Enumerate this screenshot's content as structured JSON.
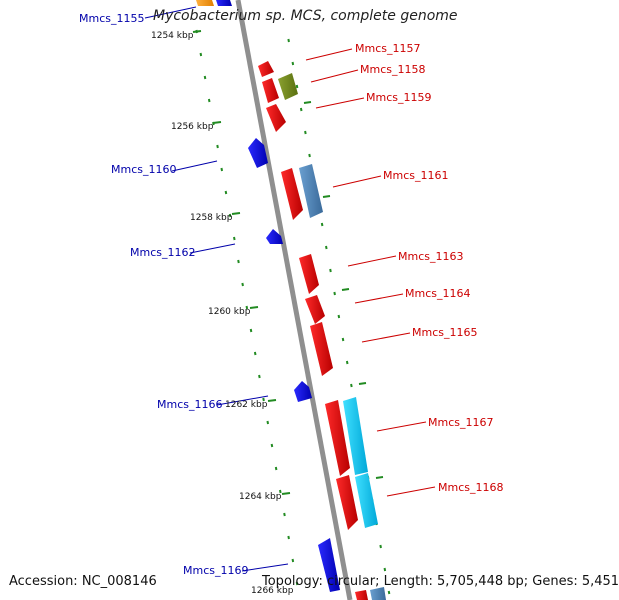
{
  "title": "Mycobacterium sp. MCS, complete genome",
  "footer": {
    "accession": "Accession: NC_008146",
    "stats": "Topology: circular; Length: 5,705,448 bp; Genes: 5,451"
  },
  "colors": {
    "backbone": "#909090",
    "tick": "#228b22",
    "forward_label": "#cc0000",
    "reverse_label": "#0000aa"
  },
  "scale_labels": [
    "1254 kbp",
    "1256 kbp",
    "1258 kbp",
    "1260 kbp",
    "1262 kbp",
    "1264 kbp",
    "1266 kbp"
  ],
  "genes": [
    {
      "name": "Mmcs_1155",
      "strand": "reverse"
    },
    {
      "name": "Mmcs_1157",
      "strand": "forward"
    },
    {
      "name": "Mmcs_1158",
      "strand": "forward"
    },
    {
      "name": "Mmcs_1159",
      "strand": "forward"
    },
    {
      "name": "Mmcs_1160",
      "strand": "reverse"
    },
    {
      "name": "Mmcs_1161",
      "strand": "forward"
    },
    {
      "name": "Mmcs_1162",
      "strand": "reverse"
    },
    {
      "name": "Mmcs_1163",
      "strand": "forward"
    },
    {
      "name": "Mmcs_1164",
      "strand": "forward"
    },
    {
      "name": "Mmcs_1165",
      "strand": "forward"
    },
    {
      "name": "Mmcs_1166",
      "strand": "reverse"
    },
    {
      "name": "Mmcs_1167",
      "strand": "forward"
    },
    {
      "name": "Mmcs_1168",
      "strand": "forward"
    },
    {
      "name": "Mmcs_1169",
      "strand": "reverse"
    }
  ]
}
